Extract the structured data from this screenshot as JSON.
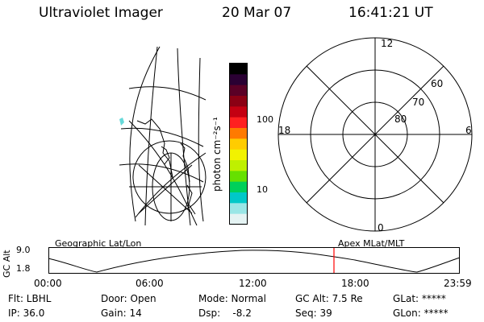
{
  "header": {
    "instrument": "Ultraviolet Imager",
    "date": "20 Mar 07",
    "time": "16:41:21 UT"
  },
  "colorbar": {
    "unit": "photon cm⁻²s⁻¹",
    "ticks": [
      "100",
      "10"
    ],
    "colors": [
      "#000000",
      "#2a0033",
      "#5a0026",
      "#8b0014",
      "#c40012",
      "#ff2020",
      "#ff7a00",
      "#ffcc00",
      "#f2f200",
      "#bff000",
      "#66e000",
      "#00d05a",
      "#00c8c8",
      "#99e6e6",
      "#e4f3f3"
    ]
  },
  "polar_plot": {
    "mlt_labels": {
      "top": "12",
      "left": "18",
      "right": "6",
      "bottom": "0"
    },
    "lat_labels": [
      "60",
      "70",
      "80"
    ]
  },
  "timeline": {
    "y_axis_label": "GC Alt",
    "y_ticks": [
      "9.0",
      "1.8"
    ],
    "left_title": "Geographic Lat/Lon",
    "right_title": "Apex MLat/MLT",
    "x_ticks": [
      "00:00",
      "06:00",
      "12:00",
      "18:00",
      "23:59"
    ],
    "marker_color": "#ff0000"
  },
  "status": {
    "row1": {
      "filter": "Flt: LBHL",
      "door": "Door: Open",
      "mode": "Mode: Normal",
      "gc_alt": "GC Alt: 7.5 Re",
      "glat": "GLat: *****"
    },
    "row2": {
      "ip": "IP: 36.0",
      "gain": "Gain: 14",
      "dsp": "Dsp:    -8.2",
      "seq": "Seq: 39",
      "glon": "GLon: *****"
    }
  }
}
